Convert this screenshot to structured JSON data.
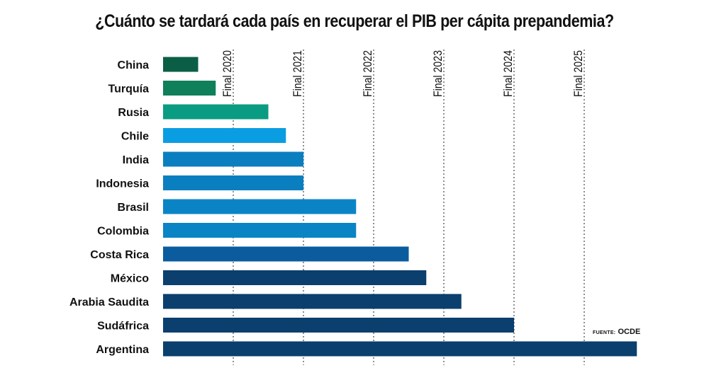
{
  "chart_data": {
    "type": "bar",
    "orientation": "horizontal",
    "title": "¿Cuánto se tardará cada país en recuperar el PIB per cápita prepandemia?",
    "xlabel": "",
    "ylabel": "",
    "x_units": "decimal year (end of year N = N+1.0)",
    "xlim": [
      2020.0,
      2026.75
    ],
    "grid": "vertical dotted",
    "ticks": [
      {
        "value": 2021.0,
        "label": "Final 2020"
      },
      {
        "value": 2022.0,
        "label": "Final 2021"
      },
      {
        "value": 2023.0,
        "label": "Final 2022"
      },
      {
        "value": 2024.0,
        "label": "Final 2023"
      },
      {
        "value": 2025.0,
        "label": "Final 2024"
      },
      {
        "value": 2026.0,
        "label": "Final 2025"
      }
    ],
    "categories": [
      "China",
      "Turquía",
      "Rusia",
      "Chile",
      "India",
      "Indonesia",
      "Brasil",
      "Colombia",
      "Costa Rica",
      "México",
      "Arabia Saudita",
      "Sudáfrica",
      "Argentina"
    ],
    "values": [
      2020.5,
      2020.75,
      2021.5,
      2021.75,
      2022.0,
      2022.0,
      2022.75,
      2022.75,
      2023.5,
      2023.75,
      2024.25,
      2025.0,
      2026.75
    ],
    "colors": [
      "#0b5e46",
      "#0f8059",
      "#0a9c82",
      "#0b9de2",
      "#0a7fc0",
      "#0a7fc0",
      "#0b84c6",
      "#0b84c6",
      "#0b5c9e",
      "#0a3f6e",
      "#0a3f6e",
      "#0a3f6e",
      "#0a3f6e"
    ],
    "source_label": "FUENTE:",
    "source": "OCDE"
  }
}
